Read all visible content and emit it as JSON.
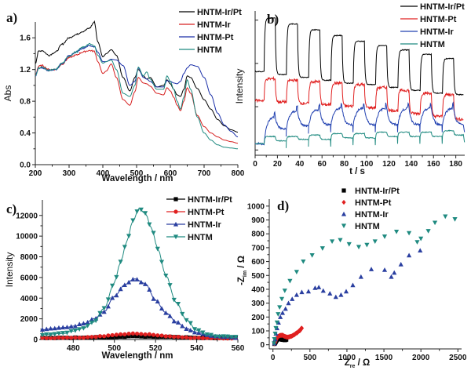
{
  "chart_data": [
    {
      "panel": "a)",
      "type": "line",
      "xlabel": "Wavelength / nm",
      "ylabel": "Abs",
      "xlim": [
        200,
        800
      ],
      "ylim": [
        0.0,
        1.8
      ],
      "xticks": [
        200,
        300,
        400,
        500,
        600,
        700,
        800
      ],
      "yticks": [
        "0.0",
        "0.4",
        "0.8",
        "1.2",
        "1.6"
      ],
      "ytick_values": [
        0.0,
        0.4,
        0.8,
        1.2,
        1.6
      ],
      "legend_position": "top-right",
      "series": [
        {
          "name": "HNTM-Ir/Pt",
          "color": "#000000",
          "x": [
            200,
            210,
            220,
            240,
            260,
            280,
            300,
            320,
            340,
            360,
            375,
            385,
            400,
            410,
            425,
            440,
            460,
            480,
            495,
            505,
            520,
            530,
            540,
            560,
            580,
            590,
            600,
            610,
            620,
            630,
            640,
            650,
            660,
            680,
            700,
            720,
            740,
            760,
            780,
            800
          ],
          "y": [
            1.28,
            1.43,
            1.44,
            1.38,
            1.42,
            1.52,
            1.6,
            1.64,
            1.68,
            1.72,
            1.8,
            1.55,
            1.36,
            1.4,
            1.45,
            1.38,
            1.1,
            0.93,
            1.1,
            1.2,
            1.12,
            1.08,
            1.1,
            0.98,
            1.0,
            1.07,
            1.02,
            0.95,
            0.88,
            0.86,
            0.95,
            1.12,
            1.1,
            0.96,
            0.82,
            0.7,
            0.57,
            0.49,
            0.44,
            0.41
          ]
        },
        {
          "name": "HNTM-Ir",
          "color": "#d62020",
          "x": [
            200,
            210,
            220,
            240,
            260,
            280,
            300,
            320,
            340,
            360,
            375,
            385,
            400,
            410,
            425,
            440,
            460,
            480,
            495,
            505,
            520,
            530,
            540,
            560,
            580,
            590,
            600,
            610,
            620,
            630,
            640,
            650,
            660,
            680,
            700,
            720,
            740,
            760,
            780,
            800
          ],
          "y": [
            1.13,
            1.24,
            1.25,
            1.2,
            1.2,
            1.27,
            1.35,
            1.38,
            1.42,
            1.44,
            1.43,
            1.3,
            1.15,
            1.18,
            1.27,
            1.1,
            0.82,
            0.75,
            0.92,
            1.1,
            1.03,
            1.02,
            0.99,
            0.9,
            0.88,
            0.97,
            0.93,
            0.85,
            0.75,
            0.68,
            0.8,
            0.97,
            0.9,
            0.62,
            0.48,
            0.4,
            0.35,
            0.31,
            0.29,
            0.27
          ]
        },
        {
          "name": "HNTM-Pt",
          "color": "#1a2fa8",
          "x": [
            200,
            210,
            220,
            240,
            260,
            280,
            300,
            320,
            340,
            360,
            375,
            385,
            400,
            410,
            425,
            440,
            460,
            480,
            495,
            505,
            520,
            530,
            540,
            560,
            580,
            590,
            600,
            610,
            620,
            630,
            640,
            650,
            660,
            680,
            700,
            720,
            740,
            760,
            780,
            800
          ],
          "y": [
            1.12,
            1.22,
            1.22,
            1.19,
            1.2,
            1.28,
            1.37,
            1.42,
            1.47,
            1.5,
            1.49,
            1.42,
            1.3,
            1.3,
            1.33,
            1.32,
            1.25,
            1.0,
            1.05,
            1.22,
            1.1,
            1.08,
            1.05,
            0.98,
            0.98,
            1.06,
            1.05,
            1.03,
            1.02,
            1.05,
            1.15,
            1.22,
            1.26,
            1.24,
            1.1,
            0.88,
            0.65,
            0.5,
            0.42,
            0.35
          ]
        },
        {
          "name": "HNTM",
          "color": "#1f8a80",
          "x": [
            200,
            210,
            220,
            240,
            260,
            280,
            300,
            320,
            340,
            360,
            375,
            385,
            400,
            410,
            425,
            440,
            460,
            480,
            495,
            505,
            520,
            530,
            540,
            560,
            580,
            590,
            600,
            610,
            620,
            630,
            640,
            650,
            660,
            680,
            700,
            720,
            740,
            760,
            780,
            800
          ],
          "y": [
            1.12,
            1.22,
            1.23,
            1.19,
            1.2,
            1.28,
            1.37,
            1.42,
            1.48,
            1.52,
            1.5,
            1.38,
            1.28,
            1.3,
            1.32,
            1.2,
            0.9,
            0.86,
            1.0,
            1.23,
            1.12,
            1.17,
            1.08,
            0.95,
            0.95,
            1.12,
            1.05,
            0.95,
            0.8,
            0.7,
            0.85,
            1.07,
            0.95,
            0.6,
            0.4,
            0.31,
            0.25,
            0.22,
            0.21,
            0.2
          ]
        }
      ],
      "legend_order": [
        "HNTM-Ir/Pt",
        "HNTM-Ir",
        "HNTM-Pt",
        "HNTM"
      ]
    },
    {
      "panel": "b)",
      "type": "line",
      "xlabel": "t / s",
      "ylabel": "Intensity",
      "xlim": [
        0,
        188
      ],
      "ylim": [
        0,
        1
      ],
      "xticks": [
        0,
        20,
        40,
        60,
        80,
        100,
        120,
        140,
        160,
        180
      ],
      "yticks": [],
      "legend_position": "top-right",
      "light_on_times": [
        8,
        28,
        48,
        68,
        88,
        108,
        128,
        148,
        168
      ],
      "light_period_s": 10,
      "series": [
        {
          "name": "HNTM-Ir/Pt",
          "color": "#000000",
          "on_levels": [
            0.95,
            0.91,
            0.87,
            0.83,
            0.79,
            0.76,
            0.73,
            0.7,
            0.67
          ],
          "off_levels": [
            0.58,
            0.56,
            0.54,
            0.52,
            0.5,
            0.49,
            0.47,
            0.45,
            0.43,
            0.42
          ]
        },
        {
          "name": "HNTM-Pt",
          "color": "#e02020",
          "on_levels": [
            0.53,
            0.52,
            0.51,
            0.5,
            0.49,
            0.47,
            0.45,
            0.43,
            0.42
          ],
          "off_levels": [
            0.38,
            0.37,
            0.36,
            0.35,
            0.34,
            0.33,
            0.31,
            0.29,
            0.27,
            0.25
          ]
        },
        {
          "name": "HNTM-Ir",
          "color": "#2040b0",
          "on_levels": [
            0.27,
            0.31,
            0.32,
            0.33,
            0.33,
            0.33,
            0.33,
            0.33,
            0.33
          ],
          "off_levels": [
            0.08,
            0.18,
            0.2,
            0.21,
            0.21,
            0.21,
            0.21,
            0.21,
            0.21,
            0.21
          ]
        },
        {
          "name": "HNTM",
          "color": "#1f8a80",
          "on_levels": [
            0.13,
            0.13,
            0.14,
            0.15,
            0.15,
            0.16,
            0.16,
            0.16,
            0.17
          ],
          "off_levels": [
            0.08,
            0.1,
            0.11,
            0.11,
            0.12,
            0.12,
            0.13,
            0.13,
            0.13,
            0.14
          ]
        }
      ],
      "legend_order": [
        "HNTM-Ir/Pt",
        "HNTM-Pt",
        "HNTM-Ir",
        "HNTM"
      ]
    },
    {
      "panel": "c)",
      "type": "line",
      "xlabel": "Wavelength / nm",
      "ylabel": "Intensity",
      "xlim": [
        465,
        560
      ],
      "ylim": [
        0,
        13500
      ],
      "xticks": [
        480,
        500,
        520,
        540,
        560
      ],
      "yticks": [
        0,
        2000,
        4000,
        6000,
        8000,
        10000,
        12000
      ],
      "legend_position": "top-right",
      "series": [
        {
          "name": "HNTM-Ir/Pt",
          "color": "#000000",
          "marker": "square",
          "x": [
            465,
            475,
            485,
            495,
            505,
            510,
            515,
            525,
            535,
            545,
            560
          ],
          "y": [
            150,
            150,
            180,
            220,
            280,
            300,
            290,
            250,
            200,
            150,
            150
          ]
        },
        {
          "name": "HNTM-Pt",
          "color": "#e02020",
          "marker": "circle",
          "x": [
            465,
            475,
            485,
            495,
            500,
            505,
            510,
            515,
            520,
            530,
            540,
            550,
            560
          ],
          "y": [
            150,
            160,
            200,
            330,
            450,
            520,
            560,
            520,
            420,
            250,
            150,
            130,
            120
          ]
        },
        {
          "name": "HNTM-Ir",
          "color": "#2a3fa0",
          "marker": "triangle-up",
          "x": [
            465,
            470,
            475,
            480,
            485,
            490,
            495,
            500,
            505,
            510,
            515,
            520,
            525,
            530,
            535,
            540,
            545,
            550,
            555,
            560
          ],
          "y": [
            950,
            1050,
            1150,
            1300,
            1550,
            2000,
            2700,
            4200,
            5300,
            5900,
            5400,
            3800,
            2600,
            1700,
            1050,
            700,
            450,
            320,
            250,
            200
          ]
        },
        {
          "name": "HNTM",
          "color": "#1f8a80",
          "marker": "triangle-down",
          "x": [
            465,
            470,
            475,
            480,
            485,
            490,
            495,
            500,
            503,
            506,
            509,
            512,
            515,
            518,
            521,
            525,
            530,
            535,
            540,
            545,
            550,
            555,
            560
          ],
          "y": [
            450,
            500,
            600,
            800,
            1100,
            1700,
            3000,
            5500,
            7500,
            9500,
            11500,
            12700,
            12200,
            10800,
            8800,
            6200,
            3600,
            1900,
            900,
            500,
            300,
            250,
            200
          ]
        }
      ],
      "legend_order": [
        "HNTM-Ir/Pt",
        "HNTM-Pt",
        "HNTM-Ir",
        "HNTM"
      ]
    },
    {
      "panel": "d)",
      "type": "scatter",
      "xlabel": "Z_re / Ω",
      "ylabel": "-Z_im / Ω",
      "xlim": [
        -50,
        2550
      ],
      "ylim": [
        -30,
        1050
      ],
      "xticks": [
        0,
        500,
        1000,
        1500,
        2000,
        2500
      ],
      "yticks": [
        0,
        100,
        200,
        300,
        400,
        500,
        600,
        700,
        800,
        900,
        1000
      ],
      "legend_position": "top-left",
      "series": [
        {
          "name": "HNTM-Ir/Pt",
          "color": "#000000",
          "marker": "square",
          "x": [
            20,
            30,
            45,
            60,
            80,
            100,
            120,
            140,
            160,
            180
          ],
          "y": [
            5,
            15,
            30,
            40,
            45,
            42,
            38,
            35,
            35,
            37
          ]
        },
        {
          "name": "HNTM-Pt",
          "color": "#e02020",
          "marker": "diamond",
          "x": [
            20,
            30,
            50,
            70,
            100,
            130,
            160,
            200,
            240,
            280,
            320,
            360,
            390
          ],
          "y": [
            5,
            20,
            45,
            60,
            68,
            68,
            60,
            55,
            60,
            70,
            85,
            100,
            120
          ]
        },
        {
          "name": "HNTM-Ir",
          "color": "#2a3fa0",
          "marker": "triangle-up",
          "x": [
            20,
            30,
            40,
            55,
            75,
            100,
            130,
            170,
            210,
            260,
            320,
            390,
            480,
            570,
            620,
            680,
            770,
            850,
            920,
            990,
            1080,
            1190,
            1330,
            1510,
            1600,
            1640,
            1730,
            1840,
            1990
          ],
          "y": [
            10,
            40,
            80,
            120,
            160,
            200,
            230,
            260,
            300,
            330,
            360,
            380,
            385,
            410,
            415,
            390,
            370,
            345,
            360,
            385,
            430,
            490,
            545,
            540,
            490,
            520,
            580,
            645,
            680
          ]
        },
        {
          "name": "HNTM",
          "color": "#1f8a80",
          "marker": "triangle-down",
          "x": [
            15,
            20,
            30,
            40,
            55,
            70,
            90,
            120,
            160,
            230,
            320,
            410,
            530,
            670,
            800,
            910,
            1030,
            1160,
            1270,
            1380,
            1510,
            1670,
            1840,
            1950,
            2000,
            2100,
            2190,
            2330,
            2460
          ],
          "y": [
            10,
            40,
            80,
            120,
            160,
            220,
            270,
            330,
            390,
            460,
            525,
            600,
            645,
            695,
            745,
            755,
            725,
            705,
            720,
            745,
            780,
            815,
            805,
            740,
            765,
            820,
            880,
            925,
            905
          ]
        }
      ],
      "legend_order": [
        "HNTM-Ir/Pt",
        "HNTM-Pt",
        "HNTM-Ir",
        "HNTM"
      ]
    }
  ]
}
